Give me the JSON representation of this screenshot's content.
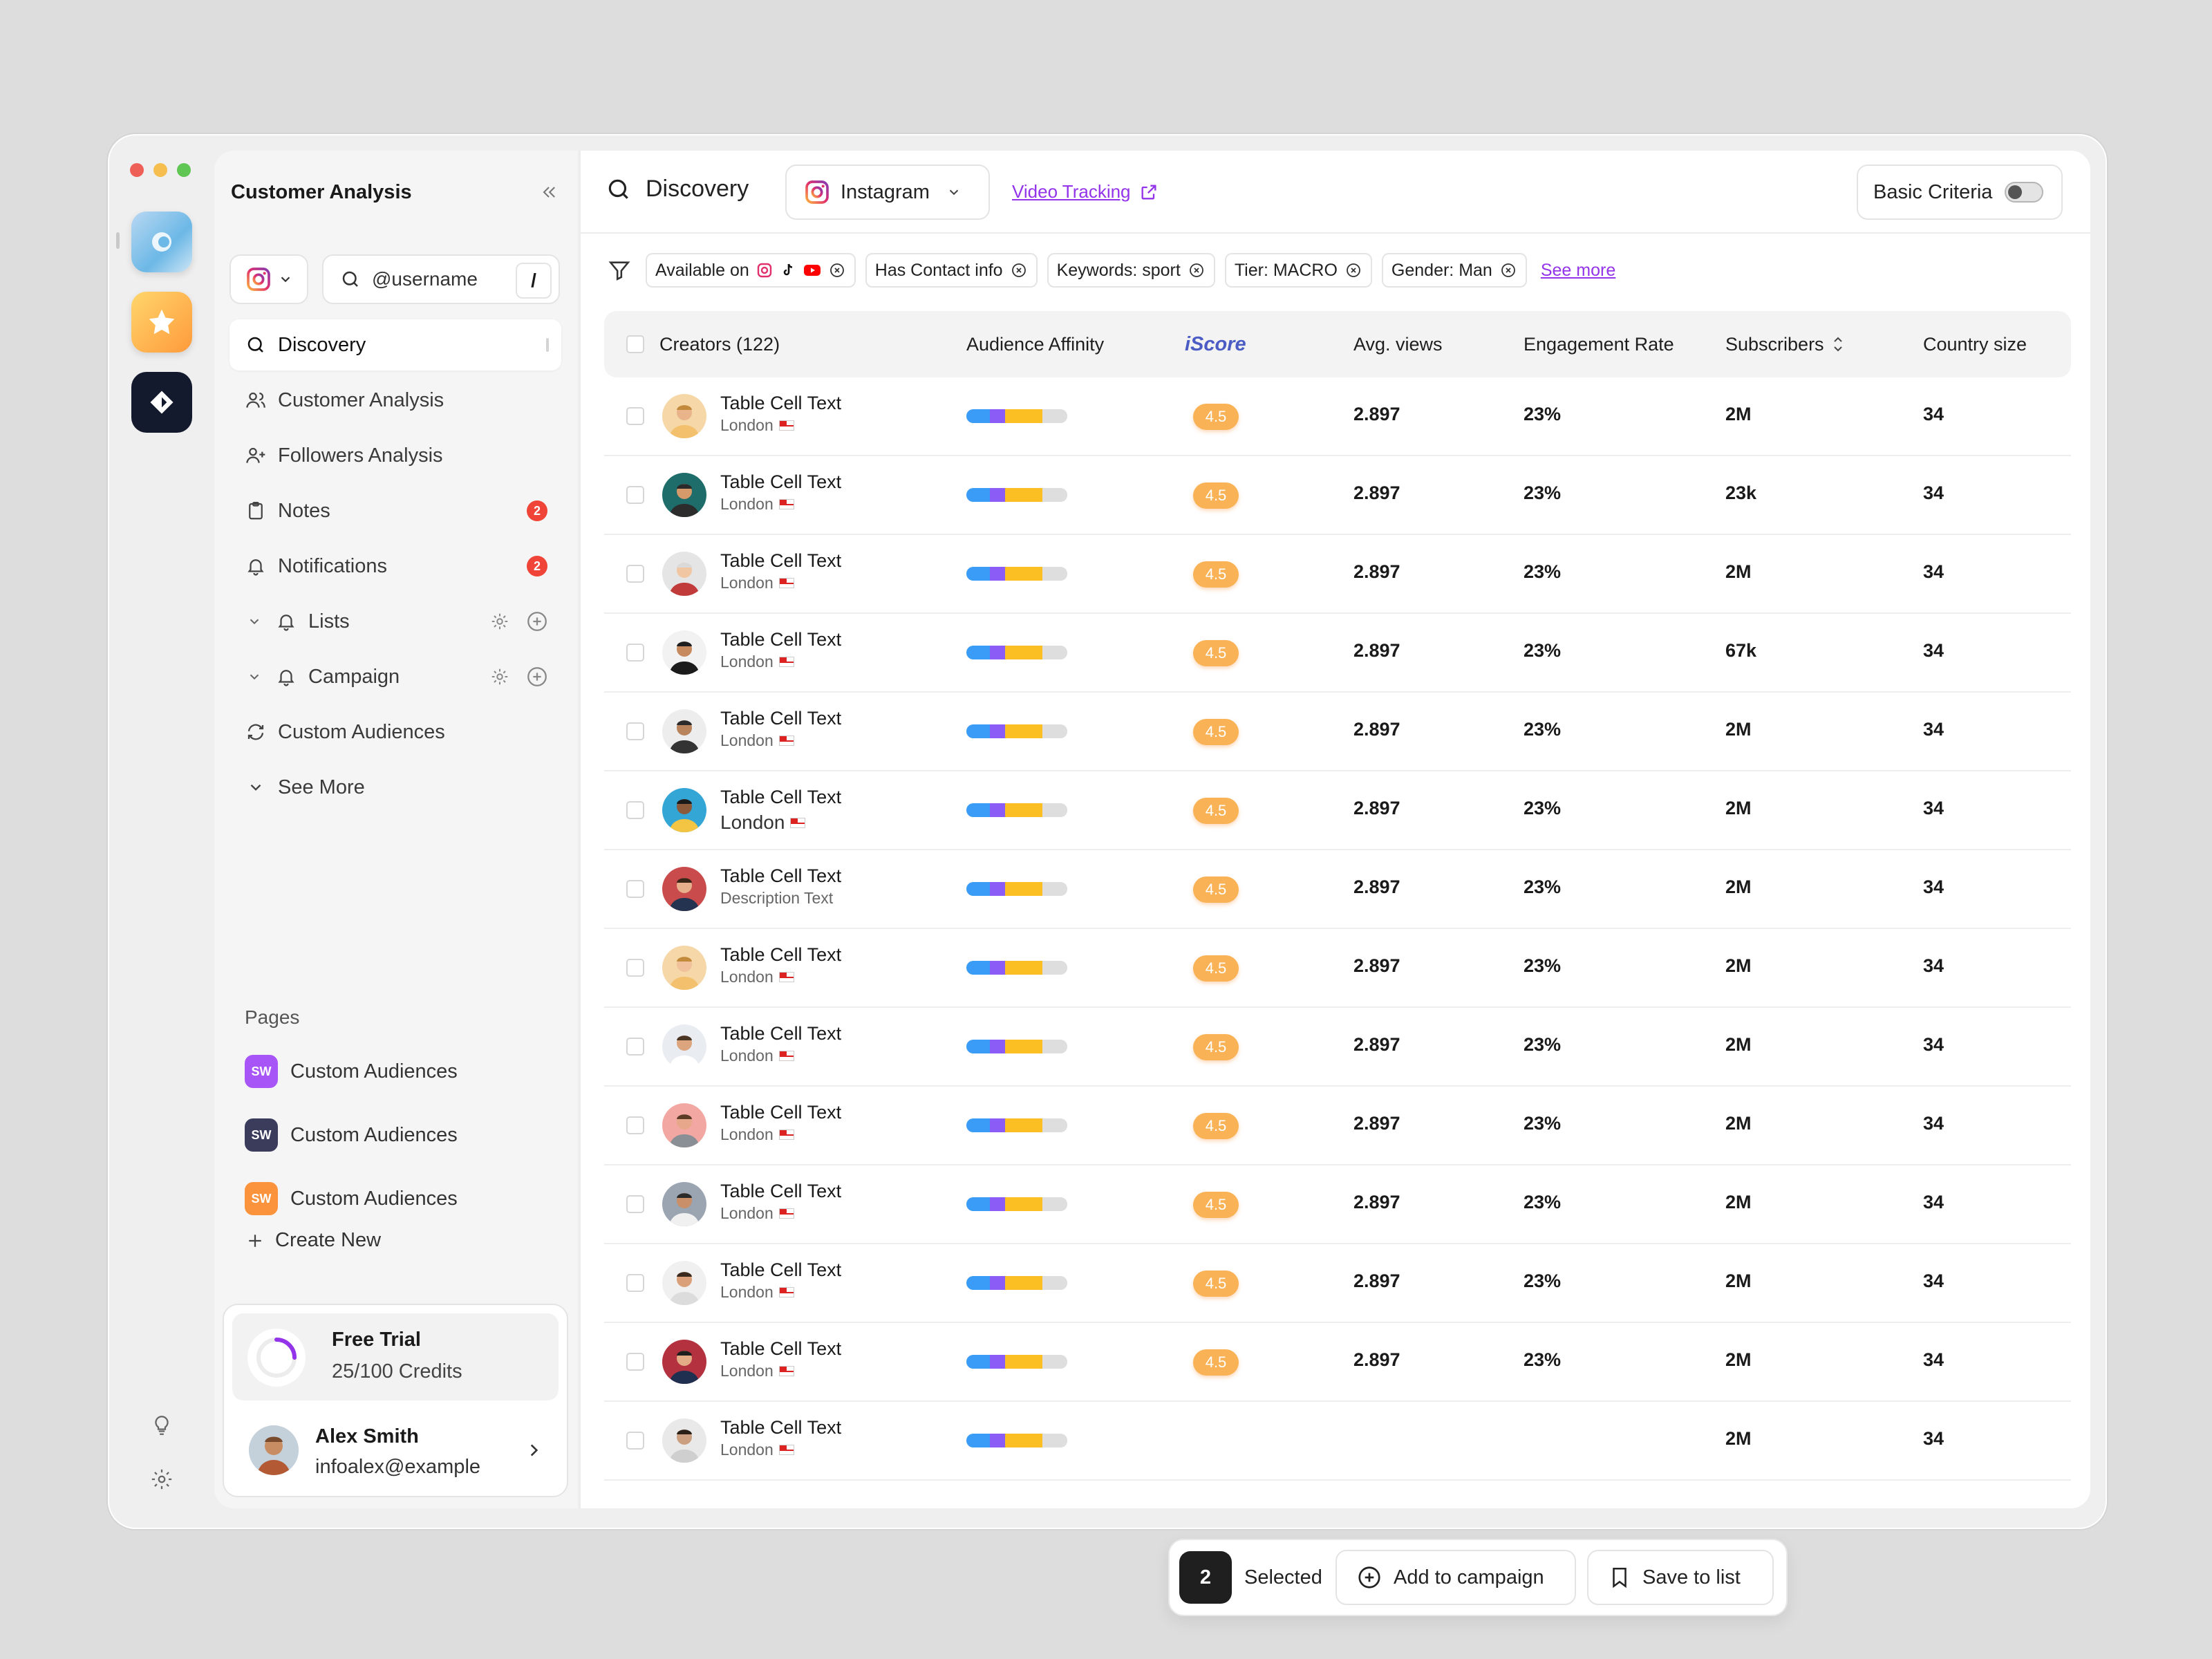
{
  "window": {
    "sidebar_title": "Customer Analysis"
  },
  "sidebar": {
    "platform_icon": "instagram-icon",
    "search_placeholder": "@username",
    "search_shortcut": "/",
    "nav": [
      {
        "label": "Discovery",
        "icon": "search-icon",
        "active": true
      },
      {
        "label": "Customer Analysis",
        "icon": "users-icon"
      },
      {
        "label": "Followers Analysis",
        "icon": "user-plus-icon"
      },
      {
        "label": "Notes",
        "icon": "clipboard-icon",
        "badge": "2"
      },
      {
        "label": "Notifications",
        "icon": "bell-icon",
        "badge": "2"
      },
      {
        "label": "Lists",
        "icon": "bell-icon"
      },
      {
        "label": "Campaign",
        "icon": "bell-icon"
      },
      {
        "label": "Custom Audiences",
        "icon": "refresh-icon"
      },
      {
        "label": "See More",
        "icon": "chevron-down-icon"
      }
    ],
    "pages_label": "Pages",
    "pages": [
      {
        "label": "Custom Audiences",
        "logo": "SW",
        "color": "#a855f7"
      },
      {
        "label": "Custom Audiences",
        "logo": "SW",
        "color": "#3b3b5c"
      },
      {
        "label": "Custom Audiences",
        "logo": "SW",
        "color": "#fb923c"
      }
    ],
    "create_new": "Create New",
    "trial": {
      "title": "Free Trial",
      "credits": "25/100 Credits",
      "progress": 0.25
    },
    "user": {
      "name": "Alex Smith",
      "email": "infoalex@example"
    }
  },
  "topbar": {
    "title": "Discovery",
    "platform": "Instagram",
    "video_tracking": "Video Tracking",
    "basic_criteria": "Basic Criteria",
    "basic_criteria_on": false
  },
  "filters": {
    "chips": [
      "Available on",
      "Has Contact info",
      "Keywords: sport",
      "Tier: MACRO",
      "Gender: Man"
    ],
    "see_more": "See more"
  },
  "table": {
    "headers": {
      "creators": "Creators (122)",
      "affinity": "Audience Affinity",
      "iscore": "iScore",
      "views": "Avg. views",
      "engagement": "Engagement Rate",
      "subscribers": "Subscribers",
      "country": "Country size"
    },
    "rows": [
      {
        "name": "Table Cell Text",
        "sub": "London",
        "score": "4.5",
        "views": "2.897",
        "engagement": "23%",
        "subscribers": "2M",
        "country": "34"
      },
      {
        "name": "Table Cell Text",
        "sub": "London",
        "score": "4.5",
        "views": "2.897",
        "engagement": "23%",
        "subscribers": "23k",
        "country": "34"
      },
      {
        "name": "Table Cell Text",
        "sub": "London",
        "score": "4.5",
        "views": "2.897",
        "engagement": "23%",
        "subscribers": "2M",
        "country": "34"
      },
      {
        "name": "Table Cell Text",
        "sub": "London",
        "score": "4.5",
        "views": "2.897",
        "engagement": "23%",
        "subscribers": "67k",
        "country": "34"
      },
      {
        "name": "Table Cell Text",
        "sub": "London",
        "score": "4.5",
        "views": "2.897",
        "engagement": "23%",
        "subscribers": "2M",
        "country": "34"
      },
      {
        "name": "Table Cell Text",
        "sub": "London",
        "score": "4.5",
        "views": "2.897",
        "engagement": "23%",
        "subscribers": "2M",
        "country": "34"
      },
      {
        "name": "Table Cell Text",
        "sub": "Description Text",
        "score": "4.5",
        "views": "2.897",
        "engagement": "23%",
        "subscribers": "2M",
        "country": "34"
      },
      {
        "name": "Table Cell Text",
        "sub": "London",
        "score": "4.5",
        "views": "2.897",
        "engagement": "23%",
        "subscribers": "2M",
        "country": "34"
      },
      {
        "name": "Table Cell Text",
        "sub": "London",
        "score": "4.5",
        "views": "2.897",
        "engagement": "23%",
        "subscribers": "2M",
        "country": "34"
      },
      {
        "name": "Table Cell Text",
        "sub": "London",
        "score": "4.5",
        "views": "2.897",
        "engagement": "23%",
        "subscribers": "2M",
        "country": "34"
      },
      {
        "name": "Table Cell Text",
        "sub": "London",
        "score": "4.5",
        "views": "2.897",
        "engagement": "23%",
        "subscribers": "2M",
        "country": "34"
      },
      {
        "name": "Table Cell Text",
        "sub": "London",
        "score": "4.5",
        "views": "2.897",
        "engagement": "23%",
        "subscribers": "2M",
        "country": "34"
      },
      {
        "name": "Table Cell Text",
        "sub": "London",
        "score": "4.5",
        "views": "2.897",
        "engagement": "23%",
        "subscribers": "2M",
        "country": "34"
      },
      {
        "name": "Table Cell Text",
        "sub": "London",
        "score": "",
        "views": "",
        "engagement": "",
        "subscribers": "2M",
        "country": "34"
      }
    ],
    "affinity_colors": [
      "#3b9cf7",
      "#8b5cf6",
      "#fbbf24",
      "#dedede"
    ]
  },
  "selection_bar": {
    "count": "2",
    "label": "Selected",
    "add_to_campaign": "Add to campaign",
    "save_to_list": "Save to list"
  },
  "colors": {
    "accent": "#9333ea",
    "score_badge": "#f9b255",
    "badge_red": "#f04438"
  }
}
